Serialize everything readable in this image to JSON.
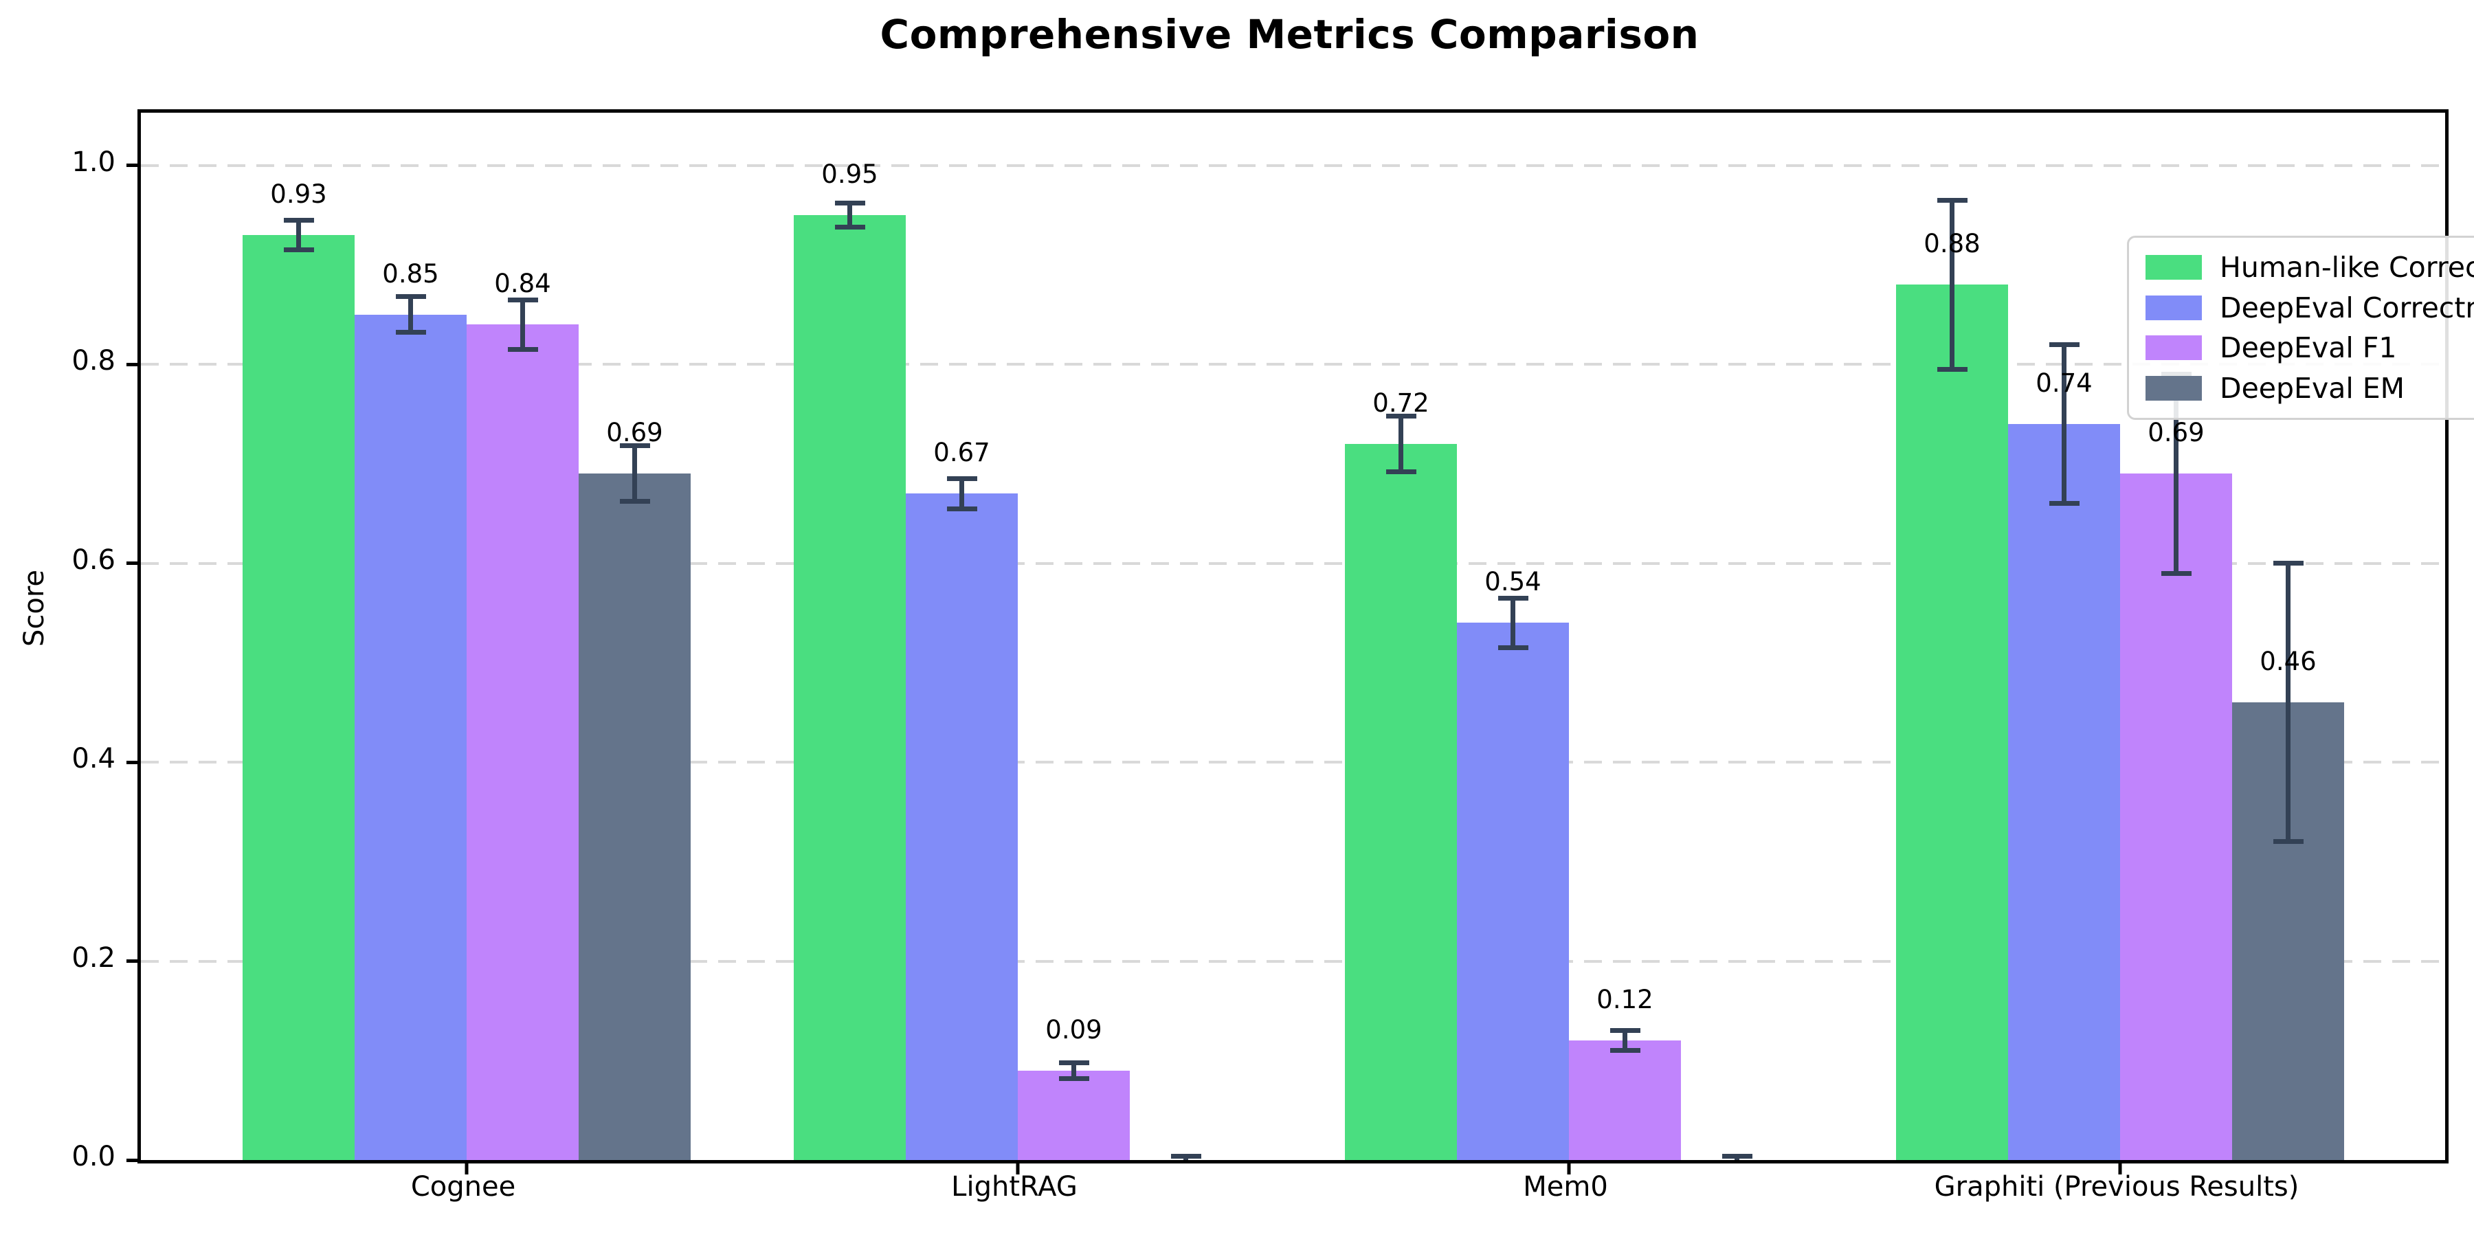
{
  "chart_data": {
    "type": "bar",
    "title": "Comprehensive Metrics Comparison",
    "xlabel": "",
    "ylabel": "Score",
    "categories": [
      "Cognee",
      "LightRAG",
      "Mem0",
      "Graphiti (Previous Results)"
    ],
    "series": [
      {
        "name": "Human-like Correctness",
        "color": "#4ade80",
        "values": [
          0.93,
          0.95,
          0.72,
          0.88
        ],
        "errors": [
          0.015,
          0.012,
          0.028,
          0.085
        ],
        "labels": [
          "0.93",
          "0.95",
          "0.72",
          "0.88"
        ]
      },
      {
        "name": "DeepEval Correctness",
        "color": "#818cf8",
        "values": [
          0.85,
          0.67,
          0.54,
          0.74
        ],
        "errors": [
          0.018,
          0.015,
          0.025,
          0.08
        ],
        "labels": [
          "0.85",
          "0.67",
          "0.54",
          "0.74"
        ]
      },
      {
        "name": "DeepEval F1",
        "color": "#c084fc",
        "values": [
          0.84,
          0.09,
          0.12,
          0.69
        ],
        "errors": [
          0.025,
          0.008,
          0.01,
          0.1
        ],
        "labels": [
          "0.84",
          "0.09",
          "0.12",
          "0.69"
        ]
      },
      {
        "name": "DeepEval EM",
        "color": "#64748b",
        "values": [
          0.69,
          0.0,
          0.0,
          0.46
        ],
        "errors": [
          0.028,
          0.004,
          0.004,
          0.14
        ],
        "labels": [
          "0.69",
          "",
          "",
          "0.46"
        ]
      }
    ],
    "yticks": [
      "0.0",
      "0.2",
      "0.4",
      "0.6",
      "0.8",
      "1.0"
    ],
    "ytick_values": [
      0.0,
      0.2,
      0.4,
      0.6,
      0.8,
      1.0
    ],
    "ylim": [
      0,
      1.053
    ],
    "grid": "horizontal-dashed",
    "gridline_color": "#d9d9d9",
    "error_bar_color": "#334155",
    "legend_position": "upper right"
  }
}
